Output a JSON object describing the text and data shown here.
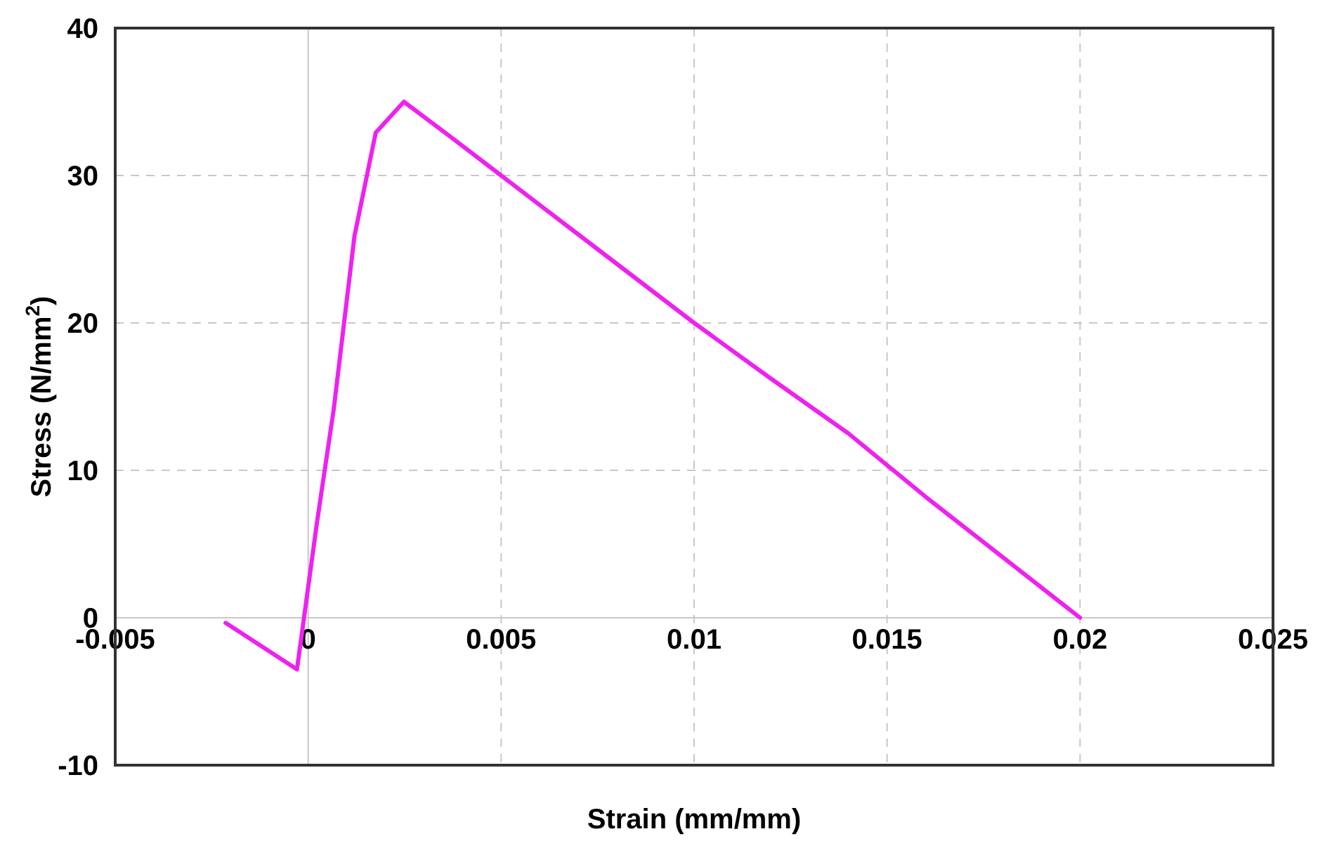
{
  "chart_data": {
    "type": "line",
    "xlabel": "Strain (mm/mm)",
    "ylabel": "Stress (N/mm$^{2}$)",
    "x": [
      -0.00214,
      -0.00029,
      0.00023,
      0.00066,
      0.0012,
      0.00175,
      0.00248,
      0.0037,
      0.005,
      0.0075,
      0.01,
      0.012,
      0.014,
      0.016,
      0.018,
      0.02
    ],
    "series": [
      {
        "color": "#ee22ee",
        "values": [
          -0.35,
          -3.5,
          6.5,
          14.1,
          25.9,
          32.9,
          35,
          32.6,
          30,
          25,
          20,
          16.2,
          12.5,
          8.2,
          4.1,
          0
        ]
      }
    ],
    "xlim": [
      -0.005,
      0.025
    ],
    "xticks": [
      -0.005,
      0,
      0.005,
      0.01,
      0.015,
      0.02,
      0.025
    ],
    "ylim": [
      -10,
      40
    ],
    "yticks": [
      -10,
      0,
      10,
      20,
      30,
      40
    ],
    "grid": true,
    "marker": "none",
    "line_style": "solid"
  }
}
